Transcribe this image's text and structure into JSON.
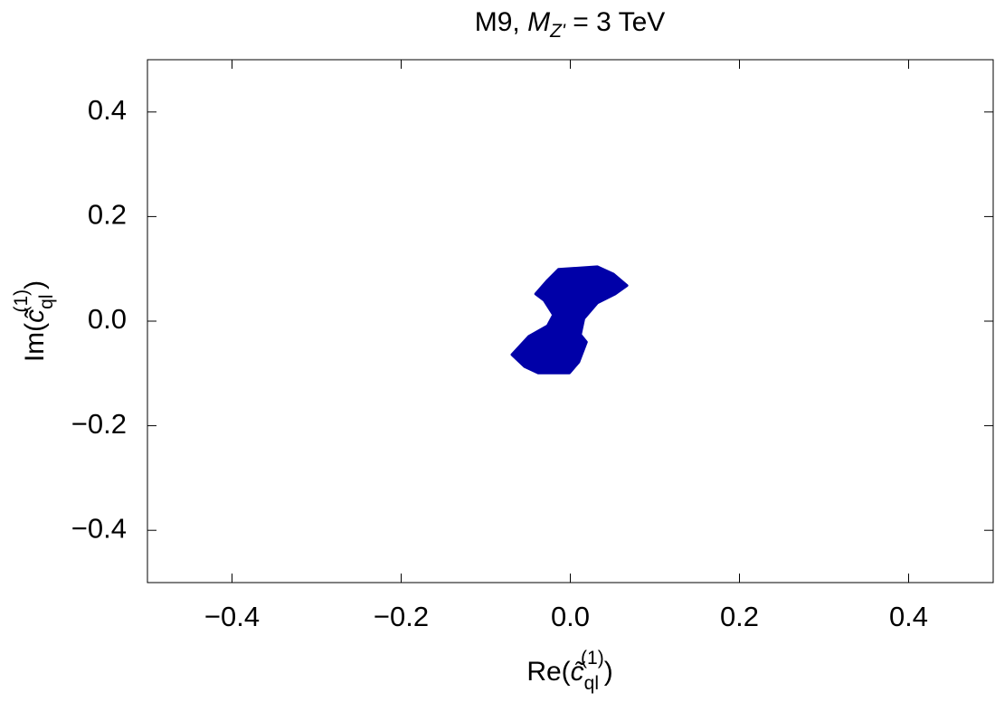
{
  "chart_data": {
    "type": "region",
    "title": {
      "text": "M9, ",
      "symbol": "M",
      "subscript": "Z'",
      "suffix": " = 3 TeV"
    },
    "x_label": {
      "prefix": "Re(",
      "symbol": "c̃",
      "subscript": "ql",
      "superscript": "(1)",
      "suffix": ")"
    },
    "y_label": {
      "prefix": "Im(",
      "symbol": "c̃",
      "subscript": "ql",
      "superscript": "(1)",
      "suffix": ")"
    },
    "xlim": [
      -0.5,
      0.5
    ],
    "ylim": [
      -0.5,
      0.5
    ],
    "xticks": [
      {
        "value": -0.4,
        "label": "−0.4"
      },
      {
        "value": -0.2,
        "label": "−0.2"
      },
      {
        "value": 0,
        "label": "0.0"
      },
      0.2,
      0.4
    ],
    "yticks": [
      {
        "value": -0.4,
        "label": "−0.4"
      },
      {
        "value": -0.2,
        "label": "−0.2"
      },
      {
        "value": 0,
        "label": "0.0"
      },
      0.2,
      0.4
    ],
    "series": [
      {
        "color": "#0000a8",
        "x": [
          -0.014,
          0.032,
          0.051,
          0.067,
          0.053,
          0.032,
          0.016,
          0.012,
          0.019,
          0.01,
          -0.001,
          -0.038,
          -0.054,
          -0.069,
          -0.049,
          -0.027,
          -0.02,
          -0.031,
          -0.041,
          -0.027
        ],
        "values": [
          0.099,
          0.104,
          0.09,
          0.068,
          0.052,
          0.035,
          0.005,
          -0.026,
          -0.04,
          -0.078,
          -0.099,
          -0.099,
          -0.087,
          -0.064,
          -0.029,
          -0.009,
          0.012,
          0.04,
          0.052,
          0.078
        ]
      }
    ]
  }
}
